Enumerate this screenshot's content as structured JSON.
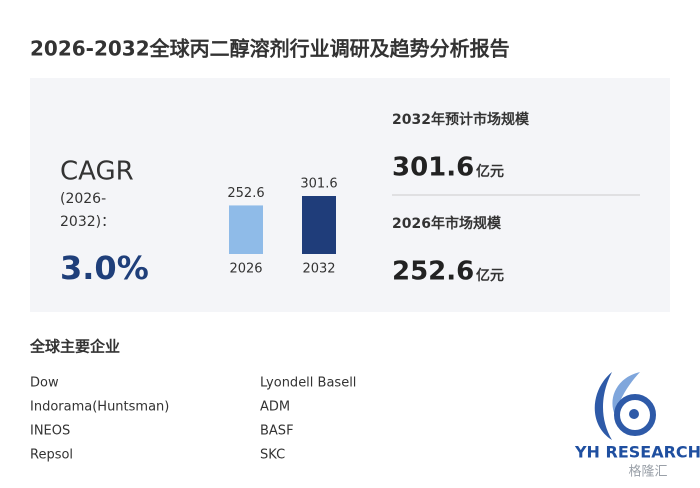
{
  "header": {
    "title": "2026-2032全球丙二醇溶剂行业调研及趋势分析报告"
  },
  "cagr": {
    "label": "CAGR",
    "period_line1": "(2026-",
    "period_line2": "2032)：",
    "value": "3.0%"
  },
  "chart_data": {
    "type": "bar",
    "categories": [
      "2026",
      "2032"
    ],
    "values": [
      252.6,
      301.6
    ],
    "colors": [
      "#8fbbe8",
      "#1f3d7a"
    ]
  },
  "market": [
    {
      "label": "2032年预计市场规模",
      "value": "301.6",
      "unit": "亿元"
    },
    {
      "label": "2026年市场规模",
      "value": "252.6",
      "unit": "亿元"
    }
  ],
  "companies": {
    "title": "全球主要企业",
    "left": [
      "Dow",
      "Indorama(Huntsman)",
      "INEOS",
      "Repsol"
    ],
    "right": [
      "Lyondell Basell",
      "ADM",
      "BASF",
      "SKC"
    ]
  },
  "logo": {
    "text": "YH RESEARCH",
    "watermark": "格隆汇"
  }
}
